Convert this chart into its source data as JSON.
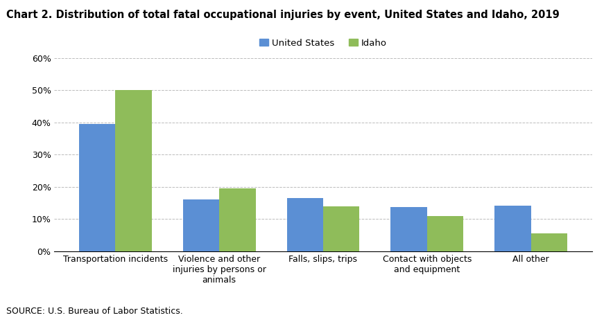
{
  "title": "Chart 2. Distribution of total fatal occupational injuries by event, United States and Idaho, 2019",
  "categories": [
    "Transportation incidents",
    "Violence and other\ninjuries by persons or\nanimals",
    "Falls, slips, trips",
    "Contact with objects\nand equipment",
    "All other"
  ],
  "us_values": [
    39.5,
    16.0,
    16.5,
    13.8,
    14.2
  ],
  "idaho_values": [
    50.0,
    19.5,
    14.0,
    11.0,
    5.5
  ],
  "us_color": "#5B8FD4",
  "idaho_color": "#8FBC5A",
  "ylim": [
    0,
    60
  ],
  "yticks": [
    0,
    10,
    20,
    30,
    40,
    50,
    60
  ],
  "legend_labels": [
    "United States",
    "Idaho"
  ],
  "source": "SOURCE: U.S. Bureau of Labor Statistics.",
  "bar_width": 0.35,
  "grid_color": "#BBBBBB",
  "background_color": "#FFFFFF",
  "title_fontsize": 10.5,
  "legend_fontsize": 9.5,
  "tick_fontsize": 9,
  "source_fontsize": 9
}
